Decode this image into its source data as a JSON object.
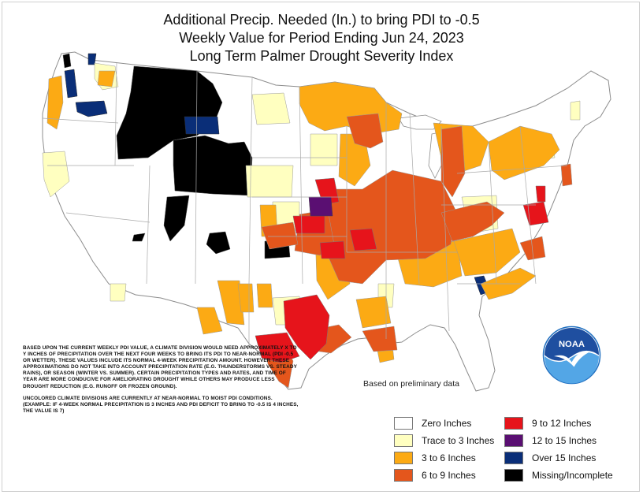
{
  "title": {
    "line1": "Additional Precip. Needed (In.) to bring PDI to -0.5",
    "line2": "Weekly Value for Period Ending Jun 24, 2023",
    "line3": "Long Term Palmer Drought Severity Index"
  },
  "notes": {
    "paragraph1": "BASED UPON THE CURRENT WEEKLY PDI VALUE, A CLIMATE DIVISION WOULD NEED APPROXIMATELY X TO Y INCHES OF PRECIPITATION OVER THE NEXT FOUR WEEKS TO BRING ITS PDI TO NEAR-NORMAL (PDI -0.5 OR WETTER). THESE VALUES INCLUDE ITS NORMAL 4-WEEK PRECIPITATION AMOUNT. HOWEVER THESE APPROXIMATIONS DO NOT TAKE INTO ACCOUNT PRECIPITATION RATE (E.G. THUNDERSTORMS VS. STEADY RAINS), OR SEASON (WINTER VS. SUMMER). CERTAIN PRECIPITATION TYPES AND RATES, AND TIME OF YEAR ARE MORE CONDUCIVE FOR AMELIORATING DROUGHT WHILE OTHERS MAY PRODUCE LESS DROUGHT REDUCTION (E.G. RUNOFF OR FROZEN GROUND).",
    "paragraph2": "UNCOLORED CLIMATE DIVISIONS ARE CURRENTLY AT NEAR-NORMAL TO MOIST PDI CONDITIONS. (EXAMPLE: IF 4-WEEK NORMAL PRECIPITATION IS 3 INCHES AND PDI DEFICIT TO BRING TO -0.5 IS 4 INCHES, THE VALUE IS 7)"
  },
  "prelim_note": "Based on preliminary data",
  "logo": {
    "text": "NOAA"
  },
  "legend": [
    {
      "label": "Zero Inches",
      "color": "#ffffff"
    },
    {
      "label": "Trace to 3 Inches",
      "color": "#ffffc0"
    },
    {
      "label": "3 to 6 Inches",
      "color": "#fcaa14"
    },
    {
      "label": "6 to 9 Inches",
      "color": "#e4561c"
    },
    {
      "label": "9 to 12 Inches",
      "color": "#e6141b"
    },
    {
      "label": "12 to 15 Inches",
      "color": "#5a0f72"
    },
    {
      "label": "Over 15 Inches",
      "color": "#0a2e78"
    },
    {
      "label": "Missing/Incomplete",
      "color": "#000000"
    }
  ],
  "colors": {
    "land": "#ffffff",
    "border": "#a9a9a9",
    "noaa_blue": "#1f6fc0",
    "noaa_light": "#53a6e6"
  }
}
